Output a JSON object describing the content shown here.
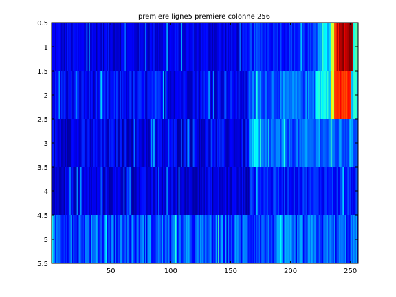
{
  "chart_data": {
    "type": "heatmap",
    "title": "premiere ligne5 premiere colonne 256",
    "xlabel": "",
    "ylabel": "",
    "x_range": [
      0.5,
      256.5
    ],
    "y_range": [
      0.5,
      5.5
    ],
    "y_reversed": true,
    "grid": false,
    "x_ticks": [
      50,
      100,
      150,
      200,
      250
    ],
    "y_ticks": [
      0.5,
      1,
      1.5,
      2,
      2.5,
      3,
      3.5,
      4,
      4.5,
      5,
      5.5
    ],
    "colormap": "jet",
    "rows": 5,
    "columns": 256,
    "row_profiles": [
      {
        "row": 1,
        "base": 0.1,
        "spread": 0.06,
        "segments": [
          [
            1,
            165,
            0.1
          ],
          [
            166,
            222,
            0.16
          ],
          [
            223,
            233,
            0.32
          ],
          [
            234,
            236,
            0.55
          ],
          [
            237,
            240,
            0.8
          ],
          [
            241,
            252,
            0.95
          ],
          [
            253,
            256,
            0.45
          ]
        ]
      },
      {
        "row": 2,
        "base": 0.12,
        "spread": 0.07,
        "segments": [
          [
            1,
            165,
            0.12
          ],
          [
            166,
            220,
            0.22
          ],
          [
            221,
            233,
            0.38
          ],
          [
            234,
            236,
            0.6
          ],
          [
            237,
            250,
            0.82
          ],
          [
            251,
            256,
            0.35
          ]
        ]
      },
      {
        "row": 3,
        "base": 0.1,
        "spread": 0.07,
        "segments": [
          [
            1,
            165,
            0.1
          ],
          [
            166,
            172,
            0.32
          ],
          [
            173,
            256,
            0.22
          ]
        ]
      },
      {
        "row": 4,
        "base": 0.09,
        "spread": 0.06,
        "segments": [
          [
            1,
            165,
            0.09
          ],
          [
            166,
            256,
            0.15
          ]
        ]
      },
      {
        "row": 5,
        "base": 0.2,
        "spread": 0.1,
        "segments": [
          [
            1,
            256,
            0.2
          ]
        ]
      }
    ],
    "colors": {
      "background": "#ffffff",
      "frame": "#000000"
    }
  }
}
